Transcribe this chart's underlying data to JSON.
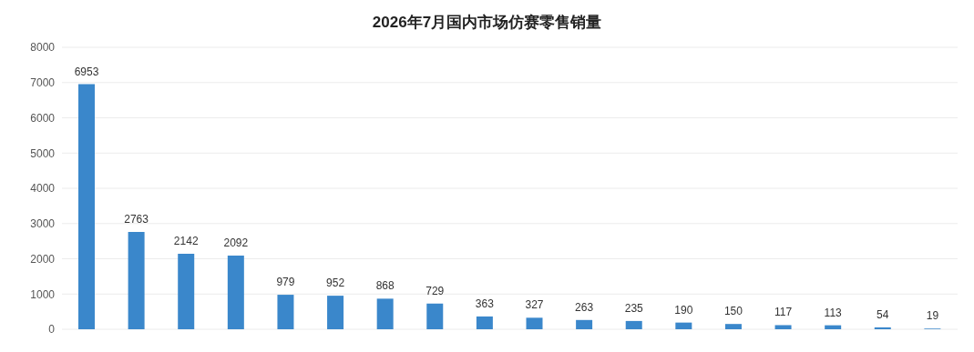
{
  "chart_data": {
    "type": "bar",
    "title": "2026年7月国内市场仿赛零售销量",
    "categories": [
      null,
      null,
      null,
      null,
      null,
      null,
      null,
      null,
      null,
      null,
      null,
      null,
      null,
      null,
      null,
      null,
      null,
      null
    ],
    "values": [
      6953,
      2763,
      2142,
      2092,
      979,
      952,
      868,
      729,
      363,
      327,
      263,
      235,
      190,
      150,
      117,
      113,
      54,
      19
    ],
    "color": "#3a87cb",
    "ylim": [
      0,
      8000
    ],
    "yticks": [
      0,
      1000,
      2000,
      3000,
      4000,
      5000,
      6000,
      7000,
      8000
    ],
    "grid": "y",
    "data_labels": true
  }
}
